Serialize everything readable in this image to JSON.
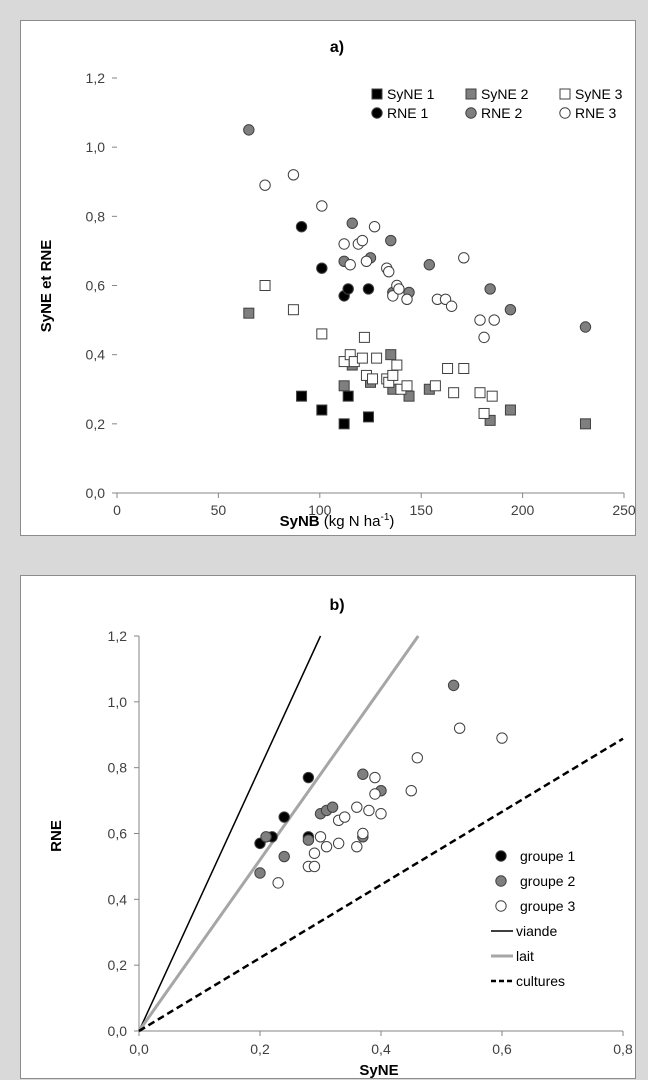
{
  "colors": {
    "black": "#000000",
    "dark_gray": "#7f7f7f",
    "white": "#ffffff",
    "light_gray_line": "#a6a6a6",
    "axis": "#868686"
  },
  "chart_data": [
    {
      "panel": "a",
      "type": "scatter",
      "title": "a)",
      "xlabel": "SyNB",
      "xlabel_units": "(kg N ha-1)",
      "ylabel": "SyNE et RNE",
      "xlim": [
        0,
        250
      ],
      "ylim": [
        0.0,
        1.2
      ],
      "xticks": [
        0,
        50,
        100,
        150,
        200,
        250
      ],
      "xtick_labels": [
        "0",
        "50",
        "100",
        "150",
        "200",
        "250"
      ],
      "yticks": [
        0,
        0.2,
        0.4,
        0.6,
        0.8,
        1.0,
        1.2
      ],
      "ytick_labels": [
        "0,0",
        "0,2",
        "0,4",
        "0,6",
        "0,8",
        "1,0",
        "1,2"
      ],
      "grid": false,
      "legend_position": "top-right",
      "series": [
        {
          "name": "SyNE 1",
          "marker": "square",
          "fill": "#000000",
          "points": [
            [
              91,
              0.28
            ],
            [
              101,
              0.24
            ],
            [
              112,
              0.2
            ],
            [
              114,
              0.28
            ],
            [
              124,
              0.22
            ]
          ]
        },
        {
          "name": "SyNE 2",
          "marker": "square",
          "fill": "#7f7f7f",
          "points": [
            [
              65,
              0.52
            ],
            [
              112,
              0.31
            ],
            [
              116,
              0.37
            ],
            [
              125,
              0.32
            ],
            [
              135,
              0.4
            ],
            [
              136,
              0.3
            ],
            [
              144,
              0.28
            ],
            [
              154,
              0.3
            ],
            [
              184,
              0.21
            ],
            [
              194,
              0.24
            ],
            [
              231,
              0.2
            ]
          ]
        },
        {
          "name": "SyNE 3",
          "marker": "square",
          "fill": "#ffffff",
          "points": [
            [
              73,
              0.6
            ],
            [
              87,
              0.53
            ],
            [
              101,
              0.46
            ],
            [
              112,
              0.38
            ],
            [
              115,
              0.4
            ],
            [
              117,
              0.38
            ],
            [
              121,
              0.39
            ],
            [
              122,
              0.45
            ],
            [
              123,
              0.34
            ],
            [
              126,
              0.33
            ],
            [
              128,
              0.39
            ],
            [
              133,
              0.33
            ],
            [
              134,
              0.32
            ],
            [
              136,
              0.34
            ],
            [
              138,
              0.37
            ],
            [
              140,
              0.3
            ],
            [
              143,
              0.31
            ],
            [
              157,
              0.31
            ],
            [
              163,
              0.36
            ],
            [
              166,
              0.29
            ],
            [
              171,
              0.36
            ],
            [
              179,
              0.29
            ],
            [
              181,
              0.23
            ],
            [
              185,
              0.28
            ]
          ]
        },
        {
          "name": "RNE 1",
          "marker": "circle",
          "fill": "#000000",
          "points": [
            [
              91,
              0.77
            ],
            [
              101,
              0.65
            ],
            [
              112,
              0.57
            ],
            [
              114,
              0.59
            ],
            [
              124,
              0.59
            ]
          ]
        },
        {
          "name": "RNE 2",
          "marker": "circle",
          "fill": "#7f7f7f",
          "points": [
            [
              65,
              1.05
            ],
            [
              112,
              0.67
            ],
            [
              116,
              0.78
            ],
            [
              125,
              0.68
            ],
            [
              135,
              0.73
            ],
            [
              136,
              0.58
            ],
            [
              144,
              0.58
            ],
            [
              154,
              0.66
            ],
            [
              184,
              0.59
            ],
            [
              194,
              0.53
            ],
            [
              231,
              0.48
            ]
          ]
        },
        {
          "name": "RNE 3",
          "marker": "circle",
          "fill": "#ffffff",
          "points": [
            [
              73,
              0.89
            ],
            [
              87,
              0.92
            ],
            [
              101,
              0.83
            ],
            [
              112,
              0.72
            ],
            [
              115,
              0.66
            ],
            [
              119,
              0.72
            ],
            [
              121,
              0.73
            ],
            [
              123,
              0.67
            ],
            [
              127,
              0.77
            ],
            [
              133,
              0.65
            ],
            [
              134,
              0.64
            ],
            [
              136,
              0.57
            ],
            [
              138,
              0.6
            ],
            [
              139,
              0.59
            ],
            [
              143,
              0.56
            ],
            [
              158,
              0.56
            ],
            [
              162,
              0.56
            ],
            [
              165,
              0.54
            ],
            [
              171,
              0.68
            ],
            [
              179,
              0.5
            ],
            [
              181,
              0.45
            ],
            [
              186,
              0.5
            ]
          ]
        }
      ]
    },
    {
      "panel": "b",
      "type": "scatter",
      "title": "b)",
      "xlabel": "SyNE",
      "ylabel": "RNE",
      "xlim": [
        0.0,
        0.8
      ],
      "ylim": [
        0.0,
        1.2
      ],
      "xticks": [
        0,
        0.2,
        0.4,
        0.6,
        0.8
      ],
      "xtick_labels": [
        "0,0",
        "0,2",
        "0,4",
        "0,6",
        "0,8"
      ],
      "yticks": [
        0,
        0.2,
        0.4,
        0.6,
        0.8,
        1.0,
        1.2
      ],
      "ytick_labels": [
        "0,0",
        "0,2",
        "0,4",
        "0,6",
        "0,8",
        "1,0",
        "1,2"
      ],
      "grid": false,
      "legend_position": "bottom-right",
      "series": [
        {
          "name": "groupe 1",
          "marker": "circle",
          "fill": "#000000",
          "points": [
            [
              0.2,
              0.57
            ],
            [
              0.22,
              0.59
            ],
            [
              0.24,
              0.65
            ],
            [
              0.28,
              0.77
            ],
            [
              0.28,
              0.59
            ]
          ]
        },
        {
          "name": "groupe 2",
          "marker": "circle",
          "fill": "#7f7f7f",
          "points": [
            [
              0.2,
              0.48
            ],
            [
              0.21,
              0.59
            ],
            [
              0.24,
              0.53
            ],
            [
              0.28,
              0.58
            ],
            [
              0.3,
              0.66
            ],
            [
              0.31,
              0.67
            ],
            [
              0.32,
              0.68
            ],
            [
              0.37,
              0.78
            ],
            [
              0.4,
              0.73
            ],
            [
              0.52,
              1.05
            ],
            [
              0.37,
              0.59
            ]
          ]
        },
        {
          "name": "groupe 3",
          "marker": "circle",
          "fill": "#ffffff",
          "points": [
            [
              0.23,
              0.45
            ],
            [
              0.28,
              0.5
            ],
            [
              0.29,
              0.5
            ],
            [
              0.29,
              0.54
            ],
            [
              0.3,
              0.59
            ],
            [
              0.31,
              0.56
            ],
            [
              0.33,
              0.57
            ],
            [
              0.33,
              0.64
            ],
            [
              0.34,
              0.65
            ],
            [
              0.36,
              0.56
            ],
            [
              0.36,
              0.68
            ],
            [
              0.37,
              0.6
            ],
            [
              0.38,
              0.67
            ],
            [
              0.39,
              0.72
            ],
            [
              0.39,
              0.77
            ],
            [
              0.4,
              0.66
            ],
            [
              0.45,
              0.73
            ],
            [
              0.46,
              0.83
            ],
            [
              0.53,
              0.92
            ],
            [
              0.6,
              0.89
            ]
          ]
        }
      ],
      "lines": [
        {
          "name": "viande",
          "slope": 4.0,
          "color": "#000000",
          "style": "solid"
        },
        {
          "name": "lait",
          "slope": 2.6,
          "color": "#a6a6a6",
          "style": "solid"
        },
        {
          "name": "cultures",
          "slope": 1.11,
          "color": "#000000",
          "style": "dashed"
        }
      ]
    }
  ]
}
